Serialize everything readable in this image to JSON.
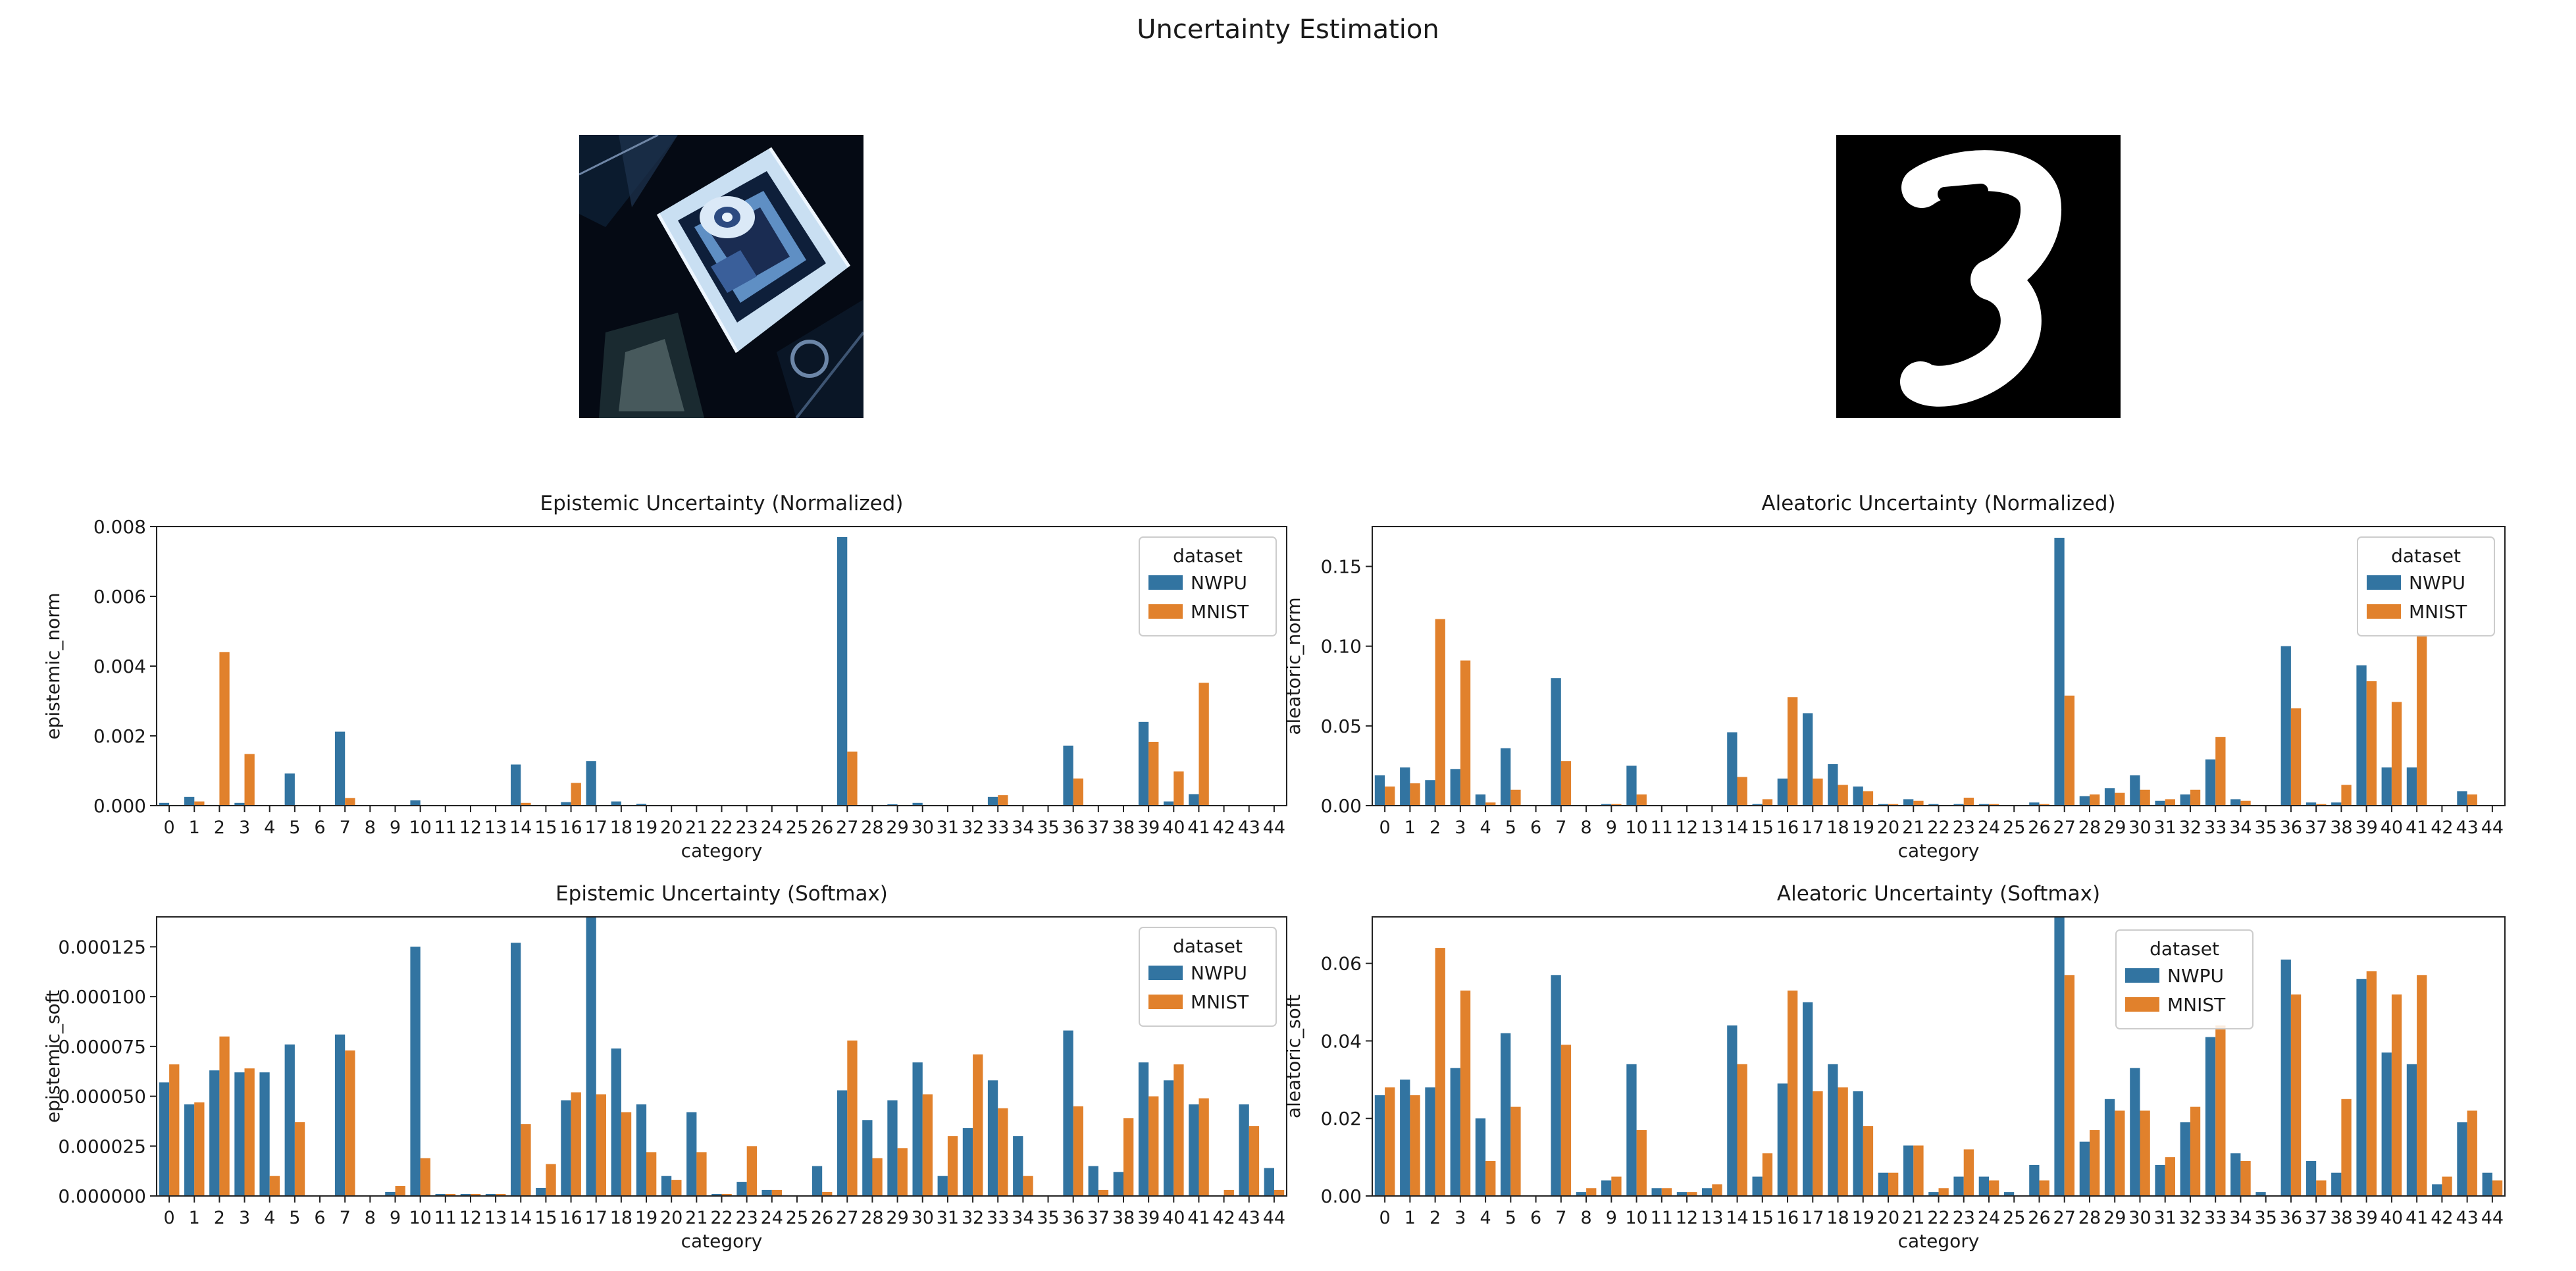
{
  "figure": {
    "title": "Uncertainty Estimation"
  },
  "images": {
    "left": {
      "subject": "aerial-building"
    },
    "right": {
      "subject": "handwritten-digit"
    }
  },
  "colors": {
    "NWPU": "#3274a1",
    "MNIST": "#e1812c"
  },
  "chart_data": [
    {
      "type": "bar",
      "title": "Epistemic Uncertainty (Normalized)",
      "xlabel": "category",
      "ylabel": "epistemic_norm",
      "ylim": [
        0,
        0.008
      ],
      "yticks": [
        0.0,
        0.002,
        0.004,
        0.006,
        0.008
      ],
      "ytick_labels": [
        "0.000",
        "0.002",
        "0.004",
        "0.006",
        "0.008"
      ],
      "legend": {
        "title": "dataset",
        "position": "top-right"
      },
      "categories": [
        "0",
        "1",
        "2",
        "3",
        "4",
        "5",
        "6",
        "7",
        "8",
        "9",
        "10",
        "11",
        "12",
        "13",
        "14",
        "15",
        "16",
        "17",
        "18",
        "19",
        "20",
        "21",
        "22",
        "23",
        "24",
        "25",
        "26",
        "27",
        "28",
        "29",
        "30",
        "31",
        "32",
        "33",
        "34",
        "35",
        "36",
        "37",
        "38",
        "39",
        "40",
        "41",
        "42",
        "43",
        "44"
      ],
      "series": [
        {
          "name": "NWPU",
          "values": [
            8e-05,
            0.00025,
            2e-05,
            8e-05,
            0,
            0.00092,
            0,
            0.00212,
            0,
            0,
            0.00015,
            0,
            0,
            0,
            0.00118,
            0,
            0.0001,
            0.00128,
            0.00012,
            5e-05,
            0,
            0,
            0,
            0,
            0,
            0,
            0,
            0.0077,
            2e-05,
            4e-05,
            8e-05,
            0,
            0,
            0.00025,
            0,
            0,
            0.00172,
            0,
            0,
            0.0024,
            0.00012,
            0.00033,
            0,
            0,
            0
          ]
        },
        {
          "name": "MNIST",
          "values": [
            2e-05,
            0.00012,
            0.0044,
            0.00148,
            0,
            2e-05,
            0,
            0.00022,
            0,
            0,
            2e-05,
            0,
            0,
            0,
            8e-05,
            2e-05,
            0.00065,
            2e-05,
            2e-05,
            2e-05,
            0,
            0,
            0,
            0,
            0,
            0,
            0,
            0.00155,
            2e-05,
            2e-05,
            2e-05,
            0,
            0,
            0.0003,
            0,
            0,
            0.00078,
            0,
            0,
            0.00183,
            0.00098,
            0.00352,
            0,
            0,
            0
          ]
        }
      ]
    },
    {
      "type": "bar",
      "title": "Aleatoric Uncertainty (Normalized)",
      "xlabel": "category",
      "ylabel": "aleatoric_norm",
      "ylim": [
        0,
        0.175
      ],
      "yticks": [
        0.0,
        0.05,
        0.1,
        0.15
      ],
      "ytick_labels": [
        "0.00",
        "0.05",
        "0.10",
        "0.15"
      ],
      "legend": {
        "title": "dataset",
        "position": "top-right"
      },
      "categories": [
        "0",
        "1",
        "2",
        "3",
        "4",
        "5",
        "6",
        "7",
        "8",
        "9",
        "10",
        "11",
        "12",
        "13",
        "14",
        "15",
        "16",
        "17",
        "18",
        "19",
        "20",
        "21",
        "22",
        "23",
        "24",
        "25",
        "26",
        "27",
        "28",
        "29",
        "30",
        "31",
        "32",
        "33",
        "34",
        "35",
        "36",
        "37",
        "38",
        "39",
        "40",
        "41",
        "42",
        "43",
        "44"
      ],
      "series": [
        {
          "name": "NWPU",
          "values": [
            0.019,
            0.024,
            0.016,
            0.023,
            0.007,
            0.036,
            0,
            0.08,
            0,
            0.001,
            0.025,
            0,
            0,
            0,
            0.046,
            0.001,
            0.017,
            0.058,
            0.026,
            0.012,
            0.001,
            0.004,
            0.001,
            0.001,
            0.001,
            0,
            0.002,
            0.168,
            0.006,
            0.011,
            0.019,
            0.003,
            0.007,
            0.029,
            0.004,
            0,
            0.1,
            0.002,
            0.002,
            0.088,
            0.024,
            0.024,
            0,
            0.009,
            0
          ]
        },
        {
          "name": "MNIST",
          "values": [
            0.012,
            0.014,
            0.117,
            0.091,
            0.002,
            0.01,
            0,
            0.028,
            0,
            0.001,
            0.007,
            0,
            0,
            0,
            0.018,
            0.004,
            0.068,
            0.017,
            0.013,
            0.009,
            0.001,
            0.003,
            0,
            0.005,
            0.001,
            0,
            0.001,
            0.069,
            0.007,
            0.008,
            0.01,
            0.004,
            0.01,
            0.043,
            0.003,
            0,
            0.061,
            0.001,
            0.013,
            0.078,
            0.065,
            0.107,
            0,
            0.007,
            0
          ]
        }
      ]
    },
    {
      "type": "bar",
      "title": "Epistemic Uncertainty (Softmax)",
      "xlabel": "category",
      "ylabel": "epistemic_soft",
      "ylim": [
        0,
        0.00014
      ],
      "yticks": [
        0,
        2.5e-05,
        5e-05,
        7.5e-05,
        0.0001,
        0.000125
      ],
      "ytick_labels": [
        "0.000000",
        "0.000025",
        "0.000050",
        "0.000075",
        "0.000100",
        "0.000125"
      ],
      "legend": {
        "title": "dataset",
        "position": "top-right"
      },
      "categories": [
        "0",
        "1",
        "2",
        "3",
        "4",
        "5",
        "6",
        "7",
        "8",
        "9",
        "10",
        "11",
        "12",
        "13",
        "14",
        "15",
        "16",
        "17",
        "18",
        "19",
        "20",
        "21",
        "22",
        "23",
        "24",
        "25",
        "26",
        "27",
        "28",
        "29",
        "30",
        "31",
        "32",
        "33",
        "34",
        "35",
        "36",
        "37",
        "38",
        "39",
        "40",
        "41",
        "42",
        "43",
        "44"
      ],
      "series": [
        {
          "name": "NWPU",
          "values": [
            5.7e-05,
            4.6e-05,
            6.3e-05,
            6.2e-05,
            6.2e-05,
            7.6e-05,
            0,
            8.1e-05,
            0,
            2e-06,
            0.000125,
            1e-06,
            1e-06,
            1e-06,
            0.000127,
            4e-06,
            4.8e-05,
            0.00014,
            7.4e-05,
            4.6e-05,
            1e-05,
            4.2e-05,
            1e-06,
            7e-06,
            3e-06,
            0,
            1.5e-05,
            5.3e-05,
            3.8e-05,
            4.8e-05,
            6.7e-05,
            1e-05,
            3.4e-05,
            5.8e-05,
            3e-05,
            0,
            8.3e-05,
            1.5e-05,
            1.2e-05,
            6.7e-05,
            5.8e-05,
            4.6e-05,
            0,
            4.6e-05,
            1.4e-05
          ]
        },
        {
          "name": "MNIST",
          "values": [
            6.6e-05,
            4.7e-05,
            8e-05,
            6.4e-05,
            1e-05,
            3.7e-05,
            0,
            7.3e-05,
            0,
            5e-06,
            1.9e-05,
            1e-06,
            1e-06,
            1e-06,
            3.6e-05,
            1.6e-05,
            5.2e-05,
            5.1e-05,
            4.2e-05,
            2.2e-05,
            8e-06,
            2.2e-05,
            1e-06,
            2.5e-05,
            3e-06,
            0,
            2e-06,
            7.8e-05,
            1.9e-05,
            2.4e-05,
            5.1e-05,
            3e-05,
            7.1e-05,
            4.4e-05,
            1e-05,
            0,
            4.5e-05,
            3e-06,
            3.9e-05,
            5e-05,
            6.6e-05,
            4.9e-05,
            3e-06,
            3.5e-05,
            3e-06
          ]
        }
      ]
    },
    {
      "type": "bar",
      "title": "Aleatoric Uncertainty (Softmax)",
      "xlabel": "category",
      "ylabel": "aleatoric_soft",
      "ylim": [
        0,
        0.072
      ],
      "yticks": [
        0.0,
        0.02,
        0.04,
        0.06
      ],
      "ytick_labels": [
        "0.00",
        "0.02",
        "0.04",
        "0.06"
      ],
      "legend": {
        "title": "dataset",
        "position": "top-left"
      },
      "categories": [
        "0",
        "1",
        "2",
        "3",
        "4",
        "5",
        "6",
        "7",
        "8",
        "9",
        "10",
        "11",
        "12",
        "13",
        "14",
        "15",
        "16",
        "17",
        "18",
        "19",
        "20",
        "21",
        "22",
        "23",
        "24",
        "25",
        "26",
        "27",
        "28",
        "29",
        "30",
        "31",
        "32",
        "33",
        "34",
        "35",
        "36",
        "37",
        "38",
        "39",
        "40",
        "41",
        "42",
        "43",
        "44"
      ],
      "series": [
        {
          "name": "NWPU",
          "values": [
            0.026,
            0.03,
            0.028,
            0.033,
            0.02,
            0.042,
            0,
            0.057,
            0.001,
            0.004,
            0.034,
            0.002,
            0.001,
            0.002,
            0.044,
            0.005,
            0.029,
            0.05,
            0.034,
            0.027,
            0.006,
            0.013,
            0.001,
            0.005,
            0.005,
            0.001,
            0.008,
            0.072,
            0.014,
            0.025,
            0.033,
            0.008,
            0.019,
            0.041,
            0.011,
            0.001,
            0.061,
            0.009,
            0.006,
            0.056,
            0.037,
            0.034,
            0.003,
            0.019,
            0.006
          ]
        },
        {
          "name": "MNIST",
          "values": [
            0.028,
            0.026,
            0.064,
            0.053,
            0.009,
            0.023,
            0,
            0.039,
            0.002,
            0.005,
            0.017,
            0.002,
            0.001,
            0.003,
            0.034,
            0.011,
            0.053,
            0.027,
            0.028,
            0.018,
            0.006,
            0.013,
            0.002,
            0.012,
            0.004,
            0,
            0.004,
            0.057,
            0.017,
            0.022,
            0.022,
            0.01,
            0.023,
            0.044,
            0.009,
            0,
            0.052,
            0.004,
            0.025,
            0.058,
            0.052,
            0.057,
            0.005,
            0.022,
            0.004
          ]
        }
      ]
    }
  ]
}
